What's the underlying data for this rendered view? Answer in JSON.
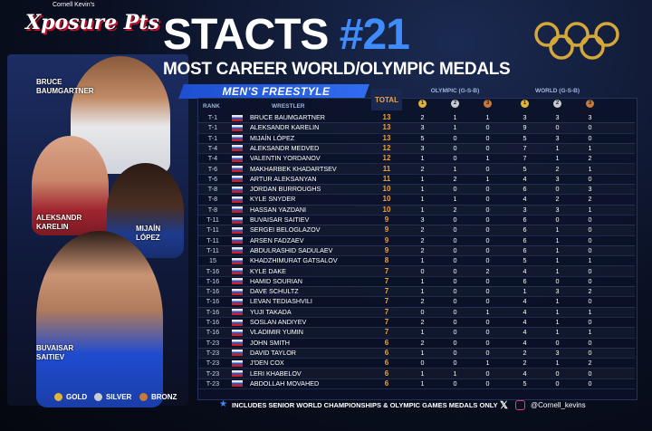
{
  "header": {
    "logo_small": "Cornell Kevin's",
    "logo_main": "Xposure Pts",
    "title_main": "STACTS",
    "title_number": "#21",
    "subtitle": "MOST CAREER WORLD/OLYMPIC MEDALS",
    "section": "MEN'S FREESTYLE"
  },
  "featured": [
    "BRUCE BAUMGARTNER",
    "ALEKSANDR KARELIN",
    "MIJAÍN LÓPEZ",
    "BUVAISAR SAITIEV"
  ],
  "table": {
    "columns": {
      "rank": "RANK",
      "wrestler": "WRESTLER",
      "total": "TOTAL",
      "olympic": "OLYMPIC (G-S-B)",
      "world": "WORLD (G-S-B)"
    },
    "medal_icons": [
      "1",
      "2",
      "3"
    ],
    "rows": [
      {
        "rank": "T-1",
        "name": "BRUCE BAUMGARTNER",
        "total": 13,
        "olympic": [
          2,
          1,
          1
        ],
        "world": [
          3,
          3,
          3
        ]
      },
      {
        "rank": "T-1",
        "name": "ALEKSANDR KARELIN",
        "total": 13,
        "olympic": [
          3,
          1,
          0
        ],
        "world": [
          9,
          0,
          0
        ]
      },
      {
        "rank": "T-1",
        "name": "MIJAÍN LÓPEZ",
        "total": 13,
        "olympic": [
          5,
          0,
          0
        ],
        "world": [
          5,
          3,
          0
        ]
      },
      {
        "rank": "T-4",
        "name": "ALEKSANDR MEDVED",
        "total": 12,
        "olympic": [
          3,
          0,
          0
        ],
        "world": [
          7,
          1,
          1
        ]
      },
      {
        "rank": "T-4",
        "name": "VALENTIN YORDANOV",
        "total": 12,
        "olympic": [
          1,
          0,
          1
        ],
        "world": [
          7,
          1,
          2
        ]
      },
      {
        "rank": "T-6",
        "name": "MAKHARBEK KHADARTSEV",
        "total": 11,
        "olympic": [
          2,
          1,
          0
        ],
        "world": [
          5,
          2,
          1
        ]
      },
      {
        "rank": "T-6",
        "name": "ARTUR ALEKSANYAN",
        "total": 11,
        "olympic": [
          1,
          2,
          1
        ],
        "world": [
          4,
          3,
          0
        ]
      },
      {
        "rank": "T-8",
        "name": "JORDAN BURROUGHS",
        "total": 10,
        "olympic": [
          1,
          0,
          0
        ],
        "world": [
          6,
          0,
          3
        ]
      },
      {
        "rank": "T-8",
        "name": "KYLE SNYDER",
        "total": 10,
        "olympic": [
          1,
          1,
          0
        ],
        "world": [
          4,
          2,
          2
        ]
      },
      {
        "rank": "T-8",
        "name": "HASSAN YAZDANI",
        "total": 10,
        "olympic": [
          1,
          2,
          0
        ],
        "world": [
          3,
          3,
          1
        ]
      },
      {
        "rank": "T-11",
        "name": "BUVAISAR SAITIEV",
        "total": 9,
        "olympic": [
          3,
          0,
          0
        ],
        "world": [
          6,
          0,
          0
        ]
      },
      {
        "rank": "T-11",
        "name": "SERGEI BELOGLAZOV",
        "total": 9,
        "olympic": [
          2,
          0,
          0
        ],
        "world": [
          6,
          1,
          0
        ]
      },
      {
        "rank": "T-11",
        "name": "ARSEN FADZAEV",
        "total": 9,
        "olympic": [
          2,
          0,
          0
        ],
        "world": [
          6,
          1,
          0
        ]
      },
      {
        "rank": "T-11",
        "name": "ABDULRASHID SADULAEV",
        "total": 9,
        "olympic": [
          2,
          0,
          0
        ],
        "world": [
          6,
          1,
          0
        ]
      },
      {
        "rank": "15",
        "name": "KHADZHIMURAT GATSALOV",
        "total": 8,
        "olympic": [
          1,
          0,
          0
        ],
        "world": [
          5,
          1,
          1
        ]
      },
      {
        "rank": "T-16",
        "name": "KYLE DAKE",
        "total": 7,
        "olympic": [
          0,
          0,
          2
        ],
        "world": [
          4,
          1,
          0
        ]
      },
      {
        "rank": "T-16",
        "name": "HAMID SOURIAN",
        "total": 7,
        "olympic": [
          1,
          0,
          0
        ],
        "world": [
          6,
          0,
          0
        ]
      },
      {
        "rank": "T-16",
        "name": "DAVE SCHULTZ",
        "total": 7,
        "olympic": [
          1,
          0,
          0
        ],
        "world": [
          1,
          3,
          2
        ]
      },
      {
        "rank": "T-16",
        "name": "LEVAN TEDIASHVILI",
        "total": 7,
        "olympic": [
          2,
          0,
          0
        ],
        "world": [
          4,
          1,
          0
        ]
      },
      {
        "rank": "T-16",
        "name": "YUJI TAKADA",
        "total": 7,
        "olympic": [
          0,
          0,
          1
        ],
        "world": [
          4,
          1,
          1
        ]
      },
      {
        "rank": "T-16",
        "name": "SOSLAN ANDIYEV",
        "total": 7,
        "olympic": [
          2,
          0,
          0
        ],
        "world": [
          4,
          1,
          0
        ]
      },
      {
        "rank": "T-16",
        "name": "VLADIMIR YUMIN",
        "total": 7,
        "olympic": [
          1,
          0,
          0
        ],
        "world": [
          4,
          1,
          1
        ]
      },
      {
        "rank": "T-23",
        "name": "JOHN SMITH",
        "total": 6,
        "olympic": [
          2,
          0,
          0
        ],
        "world": [
          4,
          0,
          0
        ]
      },
      {
        "rank": "T-23",
        "name": "DAVID TAYLOR",
        "total": 6,
        "olympic": [
          1,
          0,
          0
        ],
        "world": [
          2,
          3,
          0
        ]
      },
      {
        "rank": "T-23",
        "name": "J'DEN COX",
        "total": 6,
        "olympic": [
          0,
          0,
          1
        ],
        "world": [
          2,
          1,
          2
        ]
      },
      {
        "rank": "T-23",
        "name": "LERI KHABELOV",
        "total": 6,
        "olympic": [
          1,
          1,
          0
        ],
        "world": [
          4,
          0,
          0
        ]
      },
      {
        "rank": "T-23",
        "name": "ABDOLLAH MOVAHED",
        "total": 6,
        "olympic": [
          1,
          0,
          0
        ],
        "world": [
          5,
          0,
          0
        ]
      }
    ]
  },
  "footer": {
    "legend": [
      "GOLD",
      "SILVER",
      "BRONZ"
    ],
    "note": "INCLUDES SENIOR WORLD CHAMPIONSHIPS & OLYMPIC GAMES MEDALS ONLY",
    "handle": "@Cornell_kevins"
  }
}
